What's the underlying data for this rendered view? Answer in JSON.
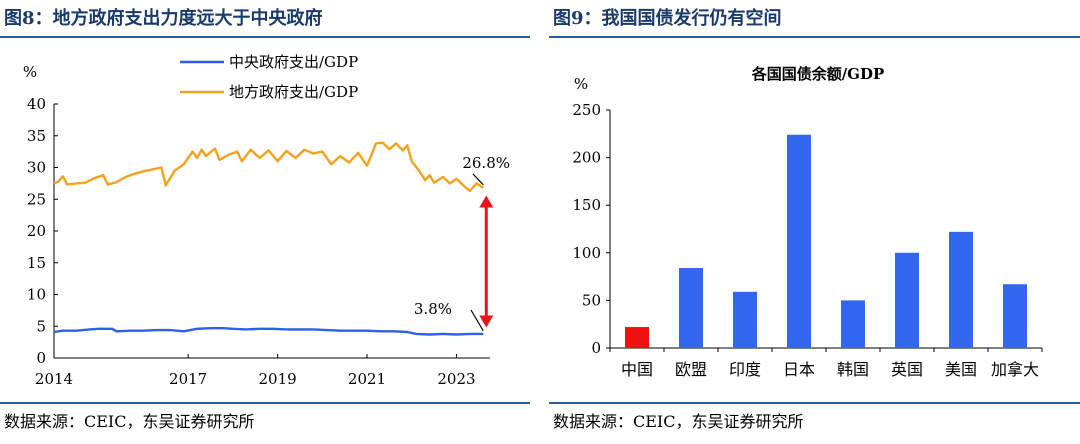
{
  "left_panel": {
    "title": "图8：地方政府支出力度远大于中央政府",
    "source": "数据来源：CEIC，东吴证券研究所"
  },
  "right_panel": {
    "title": "图9：我国国债发行仍有空间",
    "source": "数据来源：CEIC，东吴证券研究所"
  },
  "colors": {
    "title_blue": "#1a3a6a",
    "rule_blue": "#2a5aa0",
    "central_line": "#2f5fe8",
    "local_line": "#f2a21c",
    "arrow_red": "#e8141c",
    "bar_blue": "#3366ee",
    "bar_red": "#ee1111"
  },
  "chart_data": [
    {
      "type": "line",
      "title": "",
      "ylabel": "%",
      "xlabel": "",
      "ylim": [
        0,
        40
      ],
      "yticks": [
        0,
        5,
        10,
        15,
        20,
        25,
        30,
        35,
        40
      ],
      "xticks": [
        "2014",
        "2017",
        "2019",
        "2021",
        "2023"
      ],
      "x_range": [
        2014.0,
        2023.75
      ],
      "legend": "top-center",
      "grid": false,
      "series": [
        {
          "name": "中央政府支出/GDP",
          "color": "#2f5fe8",
          "points": [
            [
              2014.0,
              4.1
            ],
            [
              2014.2,
              4.3
            ],
            [
              2014.5,
              4.3
            ],
            [
              2014.8,
              4.5
            ],
            [
              2015.0,
              4.6
            ],
            [
              2015.3,
              4.6
            ],
            [
              2015.4,
              4.2
            ],
            [
              2015.7,
              4.3
            ],
            [
              2016.0,
              4.3
            ],
            [
              2016.3,
              4.4
            ],
            [
              2016.6,
              4.4
            ],
            [
              2016.9,
              4.2
            ],
            [
              2017.2,
              4.6
            ],
            [
              2017.5,
              4.7
            ],
            [
              2017.8,
              4.7
            ],
            [
              2018.0,
              4.6
            ],
            [
              2018.3,
              4.5
            ],
            [
              2018.6,
              4.6
            ],
            [
              2018.9,
              4.6
            ],
            [
              2019.2,
              4.5
            ],
            [
              2019.5,
              4.5
            ],
            [
              2019.8,
              4.5
            ],
            [
              2020.1,
              4.4
            ],
            [
              2020.4,
              4.3
            ],
            [
              2020.7,
              4.3
            ],
            [
              2021.0,
              4.3
            ],
            [
              2021.3,
              4.2
            ],
            [
              2021.6,
              4.2
            ],
            [
              2021.9,
              4.1
            ],
            [
              2022.1,
              3.8
            ],
            [
              2022.4,
              3.7
            ],
            [
              2022.7,
              3.8
            ],
            [
              2023.0,
              3.7
            ],
            [
              2023.3,
              3.8
            ],
            [
              2023.6,
              3.8
            ]
          ]
        },
        {
          "name": "地方政府支出/GDP",
          "color": "#f2a21c",
          "points": [
            [
              2014.0,
              27.5
            ],
            [
              2014.1,
              27.8
            ],
            [
              2014.2,
              28.6
            ],
            [
              2014.3,
              27.3
            ],
            [
              2014.5,
              27.5
            ],
            [
              2014.7,
              27.6
            ],
            [
              2014.9,
              28.3
            ],
            [
              2015.1,
              28.8
            ],
            [
              2015.2,
              27.3
            ],
            [
              2015.4,
              27.7
            ],
            [
              2015.6,
              28.5
            ],
            [
              2015.8,
              29.0
            ],
            [
              2016.0,
              29.4
            ],
            [
              2016.2,
              29.7
            ],
            [
              2016.4,
              30.0
            ],
            [
              2016.5,
              27.2
            ],
            [
              2016.7,
              29.5
            ],
            [
              2016.9,
              30.5
            ],
            [
              2017.1,
              32.5
            ],
            [
              2017.2,
              31.5
            ],
            [
              2017.3,
              32.8
            ],
            [
              2017.4,
              31.8
            ],
            [
              2017.6,
              33.0
            ],
            [
              2017.7,
              31.2
            ],
            [
              2017.9,
              32.0
            ],
            [
              2018.1,
              32.5
            ],
            [
              2018.2,
              31.0
            ],
            [
              2018.4,
              32.8
            ],
            [
              2018.6,
              31.5
            ],
            [
              2018.8,
              32.7
            ],
            [
              2019.0,
              31.0
            ],
            [
              2019.2,
              32.6
            ],
            [
              2019.4,
              31.5
            ],
            [
              2019.6,
              32.8
            ],
            [
              2019.8,
              32.2
            ],
            [
              2020.0,
              32.5
            ],
            [
              2020.2,
              30.5
            ],
            [
              2020.4,
              31.8
            ],
            [
              2020.6,
              30.8
            ],
            [
              2020.8,
              32.3
            ],
            [
              2021.0,
              30.3
            ],
            [
              2021.2,
              33.8
            ],
            [
              2021.35,
              33.9
            ],
            [
              2021.5,
              32.9
            ],
            [
              2021.65,
              33.8
            ],
            [
              2021.8,
              32.7
            ],
            [
              2021.9,
              33.5
            ],
            [
              2022.0,
              31.0
            ],
            [
              2022.15,
              29.6
            ],
            [
              2022.3,
              28.0
            ],
            [
              2022.4,
              28.8
            ],
            [
              2022.5,
              27.6
            ],
            [
              2022.7,
              28.5
            ],
            [
              2022.85,
              27.5
            ],
            [
              2023.0,
              28.2
            ],
            [
              2023.15,
              27.2
            ],
            [
              2023.3,
              26.3
            ],
            [
              2023.45,
              27.5
            ],
            [
              2023.6,
              26.8
            ]
          ]
        }
      ],
      "annotations": [
        {
          "text": "26.8%",
          "x": 2023.6,
          "y": 26.8
        },
        {
          "text": "3.8%",
          "x": 2023.6,
          "y": 3.8
        }
      ],
      "arrow": {
        "from_y": 4.8,
        "to_y": 25.6,
        "x": 2023.6,
        "color": "#e8141c"
      }
    },
    {
      "type": "bar",
      "title": "各国国债余额/GDP",
      "ylabel": "%",
      "xlabel": "",
      "ylim": [
        0,
        250
      ],
      "yticks": [
        0,
        50,
        100,
        150,
        200,
        250
      ],
      "categories": [
        "中国",
        "欧盟",
        "印度",
        "日本",
        "韩国",
        "英国",
        "美国",
        "加拿大"
      ],
      "values": [
        22,
        84,
        59,
        224,
        50,
        100,
        122,
        67
      ],
      "bar_colors": [
        "#ee1111",
        "#3366ee",
        "#3366ee",
        "#3366ee",
        "#3366ee",
        "#3366ee",
        "#3366ee",
        "#3366ee"
      ],
      "grid": false
    }
  ]
}
